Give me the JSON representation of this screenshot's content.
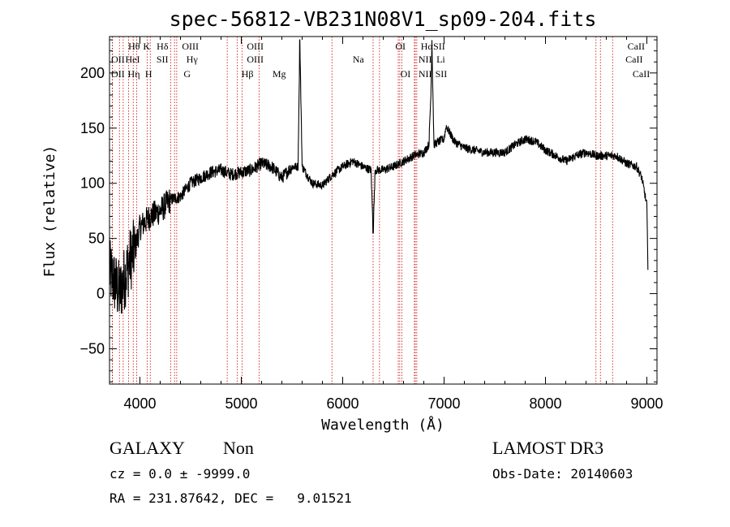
{
  "chart_data": {
    "type": "line",
    "title": "spec-56812-VB231N08V1_sp09-204.fits",
    "xlabel": "Wavelength (Å)",
    "ylabel": "Flux (relative)",
    "xlim": [
      3700,
      9100
    ],
    "ylim": [
      -82,
      233
    ],
    "xticks": [
      4000,
      5000,
      6000,
      7000,
      8000,
      9000
    ],
    "yticks": [
      -50,
      0,
      50,
      100,
      150,
      200
    ],
    "series": [
      {
        "name": "spectrum",
        "x": [
          3700,
          3750,
          3800,
          3850,
          3900,
          3950,
          4000,
          4100,
          4200,
          4300,
          4400,
          4500,
          4600,
          4700,
          4800,
          4900,
          5000,
          5100,
          5200,
          5300,
          5400,
          5500,
          5560,
          5577,
          5600,
          5700,
          5800,
          5900,
          6000,
          6100,
          6200,
          6280,
          6300,
          6320,
          6400,
          6500,
          6600,
          6700,
          6800,
          6850,
          6870,
          6880,
          6890,
          6900,
          6950,
          7000,
          7020,
          7100,
          7200,
          7300,
          7400,
          7500,
          7600,
          7700,
          7800,
          7900,
          8000,
          8100,
          8200,
          8300,
          8400,
          8500,
          8600,
          8700,
          8800,
          8900,
          8950,
          9000,
          9010
        ],
        "values": [
          20,
          10,
          0,
          15,
          30,
          40,
          60,
          70,
          75,
          85,
          88,
          100,
          105,
          110,
          112,
          108,
          110,
          112,
          118,
          115,
          105,
          115,
          115,
          230,
          115,
          100,
          98,
          108,
          115,
          120,
          115,
          112,
          55,
          112,
          112,
          115,
          120,
          125,
          128,
          135,
          180,
          230,
          180,
          135,
          138,
          140,
          152,
          138,
          132,
          130,
          128,
          128,
          128,
          135,
          140,
          138,
          130,
          125,
          120,
          125,
          128,
          125,
          125,
          125,
          118,
          115,
          105,
          80,
          25
        ]
      }
    ],
    "emission_lines": [
      {
        "label": "Hθ",
        "x": 3798,
        "row": 1
      },
      {
        "label": "OII",
        "x": 3727,
        "row": 2
      },
      {
        "label": "OII",
        "x": 3729,
        "row": 3
      },
      {
        "label": "HeI",
        "x": 3889,
        "row": 2
      },
      {
        "label": "Hη",
        "x": 3835,
        "row": 3
      },
      {
        "label": "K",
        "x": 3934,
        "row": 1
      },
      {
        "label": "H",
        "x": 3969,
        "row": 3
      },
      {
        "label": "Hδ",
        "x": 4102,
        "row": 1
      },
      {
        "label": "SII",
        "x": 4072,
        "row": 2
      },
      {
        "label": "OIII",
        "x": 4363,
        "row": 1
      },
      {
        "label": "Hγ",
        "x": 4341,
        "row": 2
      },
      {
        "label": "G",
        "x": 4304,
        "row": 3
      },
      {
        "label": "OIII",
        "x": 5007,
        "row": 1
      },
      {
        "label": "OIII",
        "x": 4959,
        "row": 2
      },
      {
        "label": "Hβ",
        "x": 4861,
        "row": 3
      },
      {
        "label": "Mg",
        "x": 5175,
        "row": 3
      },
      {
        "label": "Na",
        "x": 5894,
        "row": 2
      },
      {
        "label": "OI",
        "x": 6300,
        "row": 1
      },
      {
        "label": "OI",
        "x": 6363,
        "row": 3
      },
      {
        "label": "Hα",
        "x": 6563,
        "row": 1
      },
      {
        "label": "SII",
        "x": 6716,
        "row": 1
      },
      {
        "label": "NII",
        "x": 6548,
        "row": 2
      },
      {
        "label": "Li",
        "x": 6707,
        "row": 2
      },
      {
        "label": "NII",
        "x": 6583,
        "row": 3
      },
      {
        "label": "SII",
        "x": 6731,
        "row": 3
      },
      {
        "label": "CaII",
        "x": 8542,
        "row": 1
      },
      {
        "label": "CaII",
        "x": 8498,
        "row": 2
      },
      {
        "label": "CaII",
        "x": 8662,
        "row": 3
      }
    ],
    "line_label_layout": [
      {
        "x": 4000,
        "row": 1
      },
      {
        "x": 3850,
        "row": 2
      },
      {
        "x": 3850,
        "row": 3
      },
      {
        "x": 4000,
        "row": 2
      },
      {
        "x": 4000,
        "row": 3
      },
      {
        "x": 4100,
        "row": 1
      },
      {
        "x": 4120,
        "row": 3
      },
      {
        "x": 4280,
        "row": 1
      },
      {
        "x": 4280,
        "row": 2
      },
      {
        "x": 4580,
        "row": 1
      },
      {
        "x": 4570,
        "row": 2
      },
      {
        "x": 4500,
        "row": 3
      },
      {
        "x": 5220,
        "row": 1
      },
      {
        "x": 5220,
        "row": 2
      },
      {
        "x": 5120,
        "row": 3
      },
      {
        "x": 5440,
        "row": 3
      },
      {
        "x": 6210,
        "row": 2
      },
      {
        "x": 6620,
        "row": 1
      },
      {
        "x": 6670,
        "row": 3
      },
      {
        "x": 6890,
        "row": 1
      },
      {
        "x": 7010,
        "row": 1
      },
      {
        "x": 6880,
        "row": 2
      },
      {
        "x": 7010,
        "row": 2
      },
      {
        "x": 6880,
        "row": 3
      },
      {
        "x": 7030,
        "row": 3
      },
      {
        "x": 8980,
        "row": 1
      },
      {
        "x": 8960,
        "row": 2
      },
      {
        "x": 9030,
        "row": 3
      }
    ]
  },
  "footer": {
    "object_class": "GALAXY",
    "subclass": "Non",
    "survey": "LAMOST DR3",
    "cz": "cz = 0.0 ± -9999.0",
    "obs_date": "Obs-Date: 20140603",
    "coords": "RA = 231.87642, DEC =   9.01521"
  }
}
